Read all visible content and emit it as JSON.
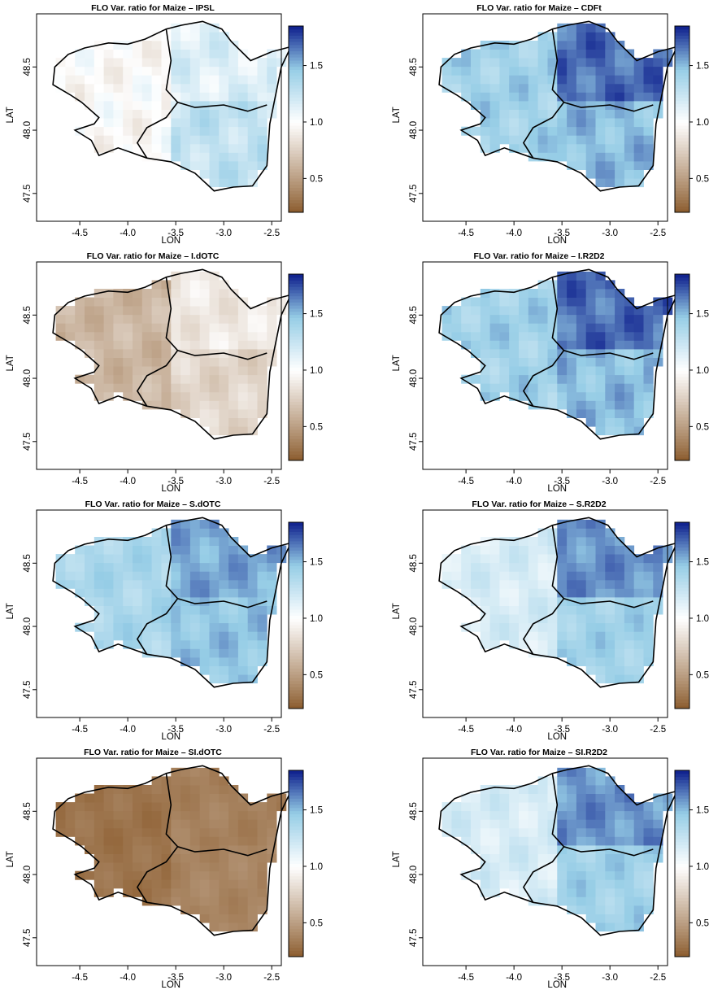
{
  "colors": {
    "scale_low": "#8a5a2b",
    "scale_mid": "#ffffff",
    "scale_high": "#0d1e8c",
    "frame": "#000000",
    "coast": "#000000"
  },
  "chart_data": [
    {
      "type": "heatmap",
      "title": "FLO Var. ratio for Maize – IPSL",
      "xlabel": "LON",
      "ylabel": "LAT",
      "xticks": [
        "-4.5",
        "-4.0",
        "-3.5",
        "-3.0",
        "-2.5"
      ],
      "yticks": [
        "47.5",
        "48.0",
        "48.5"
      ],
      "xlim": [
        -4.95,
        -2.4
      ],
      "ylim": [
        47.28,
        48.92
      ],
      "colorbar": {
        "range": [
          0.2,
          1.85
        ],
        "ticks": [
          "0.5",
          "1.0",
          "1.5"
        ]
      },
      "zones": {
        "west": 0.98,
        "northeast": 1.15,
        "southeast": 1.28
      },
      "pattern_amplitude": 0.13
    },
    {
      "type": "heatmap",
      "title": "FLO Var. ratio for Maize – CDFt",
      "xlabel": "LON",
      "ylabel": "LAT",
      "xticks": [
        "-4.5",
        "-4.0",
        "-3.5",
        "-3.0",
        "-2.5"
      ],
      "yticks": [
        "47.5",
        "48.0",
        "48.5"
      ],
      "xlim": [
        -4.95,
        -2.4
      ],
      "ylim": [
        47.28,
        48.92
      ],
      "colorbar": {
        "range": [
          0.2,
          1.85
        ],
        "ticks": [
          "0.5",
          "1.0",
          "1.5"
        ]
      },
      "zones": {
        "west": 1.42,
        "northeast": 1.68,
        "southeast": 1.5
      },
      "pattern_amplitude": 0.12
    },
    {
      "type": "heatmap",
      "title": "FLO Var. ratio for Maize – I.dOTC",
      "xlabel": "LON",
      "ylabel": "LAT",
      "xticks": [
        "-4.5",
        "-4.0",
        "-3.5",
        "-3.0",
        "-2.5"
      ],
      "yticks": [
        "47.5",
        "48.0",
        "48.5"
      ],
      "xlim": [
        -4.95,
        -2.4
      ],
      "ylim": [
        47.28,
        48.92
      ],
      "colorbar": {
        "range": [
          0.2,
          1.85
        ],
        "ticks": [
          "0.5",
          "1.0",
          "1.5"
        ]
      },
      "zones": {
        "west": 0.62,
        "northeast": 0.88,
        "southeast": 0.78
      },
      "pattern_amplitude": 0.1
    },
    {
      "type": "heatmap",
      "title": "FLO Var. ratio for Maize – I.R2D2",
      "xlabel": "LON",
      "ylabel": "LAT",
      "xticks": [
        "-4.5",
        "-4.0",
        "-3.5",
        "-3.0",
        "-2.5"
      ],
      "yticks": [
        "47.5",
        "48.0",
        "48.5"
      ],
      "xlim": [
        -4.95,
        -2.4
      ],
      "ylim": [
        47.28,
        48.92
      ],
      "colorbar": {
        "range": [
          0.2,
          1.85
        ],
        "ticks": [
          "0.5",
          "1.0",
          "1.5"
        ]
      },
      "zones": {
        "west": 1.42,
        "northeast": 1.68,
        "southeast": 1.5
      },
      "pattern_amplitude": 0.12
    },
    {
      "type": "heatmap",
      "title": "FLO Var. ratio for Maize – S.dOTC",
      "xlabel": "LON",
      "ylabel": "LAT",
      "xticks": [
        "-4.5",
        "-4.0",
        "-3.5",
        "-3.0",
        "-2.5"
      ],
      "yticks": [
        "47.5",
        "48.0",
        "48.5"
      ],
      "xlim": [
        -4.95,
        -2.4
      ],
      "ylim": [
        47.28,
        48.92
      ],
      "colorbar": {
        "range": [
          0.2,
          1.85
        ],
        "ticks": [
          "0.5",
          "1.0",
          "1.5"
        ]
      },
      "zones": {
        "west": 1.38,
        "northeast": 1.55,
        "southeast": 1.48
      },
      "pattern_amplitude": 0.1
    },
    {
      "type": "heatmap",
      "title": "FLO Var. ratio for Maize – S.R2D2",
      "xlabel": "LON",
      "ylabel": "LAT",
      "xticks": [
        "-4.5",
        "-4.0",
        "-3.5",
        "-3.0",
        "-2.5"
      ],
      "yticks": [
        "47.5",
        "48.0",
        "48.5"
      ],
      "xlim": [
        -4.95,
        -2.4
      ],
      "ylim": [
        47.28,
        48.92
      ],
      "colorbar": {
        "range": [
          0.2,
          1.85
        ],
        "ticks": [
          "0.5",
          "1.0",
          "1.5"
        ]
      },
      "zones": {
        "west": 1.18,
        "northeast": 1.6,
        "southeast": 1.42
      },
      "pattern_amplitude": 0.1
    },
    {
      "type": "heatmap",
      "title": "FLO Var. ratio for Maize – SI.dOTC",
      "xlabel": "LON",
      "ylabel": "LAT",
      "xticks": [
        "-4.5",
        "-4.0",
        "-3.5",
        "-3.0",
        "-2.5"
      ],
      "yticks": [
        "47.5",
        "48.0",
        "48.5"
      ],
      "xlim": [
        -4.95,
        -2.4
      ],
      "ylim": [
        47.28,
        48.92
      ],
      "colorbar": {
        "range": [
          0.2,
          1.85
        ],
        "ticks": [
          "0.5",
          "1.0",
          "1.5"
        ]
      },
      "zones": {
        "west": 0.3,
        "northeast": 0.36,
        "southeast": 0.38
      },
      "pattern_amplitude": 0.05
    },
    {
      "type": "heatmap",
      "title": "FLO Var. ratio for Maize – SI.R2D2",
      "xlabel": "LON",
      "ylabel": "LAT",
      "xticks": [
        "-4.5",
        "-4.0",
        "-3.5",
        "-3.0",
        "-2.5"
      ],
      "yticks": [
        "47.5",
        "48.0",
        "48.5"
      ],
      "xlim": [
        -4.95,
        -2.4
      ],
      "ylim": [
        47.28,
        48.92
      ],
      "colorbar": {
        "range": [
          0.2,
          1.85
        ],
        "ticks": [
          "0.5",
          "1.0",
          "1.5"
        ]
      },
      "zones": {
        "west": 1.18,
        "northeast": 1.6,
        "southeast": 1.42
      },
      "pattern_amplitude": 0.1
    }
  ]
}
